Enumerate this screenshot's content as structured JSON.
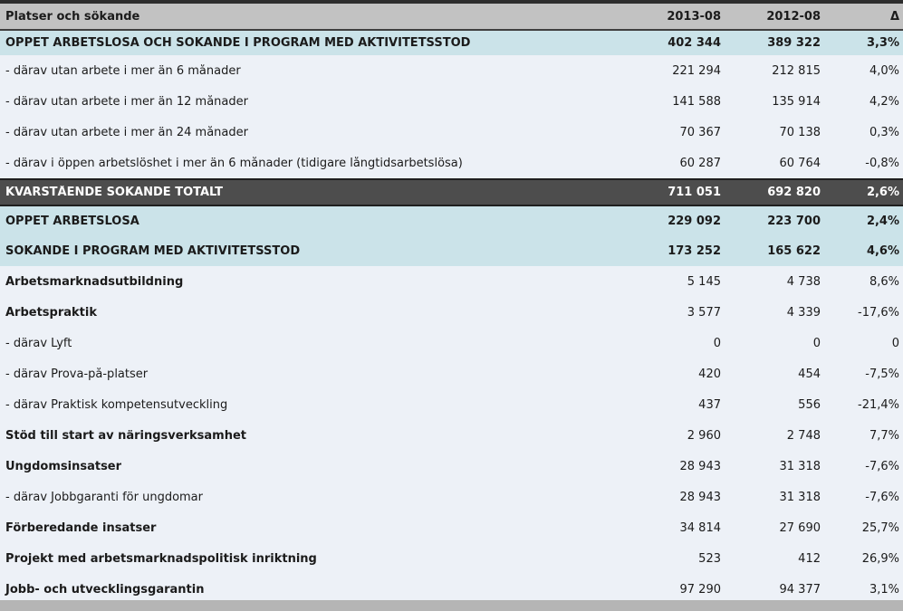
{
  "chart_data": {
    "type": "table",
    "title": "Platser och sökande",
    "columns": [
      "Platser och sökande",
      "2013-08",
      "2012-08",
      "Δ"
    ],
    "rows": [
      {
        "label": "ÖPPET ARBETSLÖSA OCH SÖKANDE I PROGRAM MED AKTIVITETSSTÖD",
        "v2013": "402 344",
        "v2012": "389 322",
        "delta": "3,3%",
        "style": "highlight"
      },
      {
        "label": "- därav utan arbete i mer än 6 månader",
        "v2013": "221 294",
        "v2012": "212 815",
        "delta": "4,0%",
        "style": "sub"
      },
      {
        "label": "- därav utan arbete i mer än 12 månader",
        "v2013": "141 588",
        "v2012": "135 914",
        "delta": "4,2%",
        "style": "sub"
      },
      {
        "label": "- därav utan arbete i mer än 24 månader",
        "v2013": "70 367",
        "v2012": "70 138",
        "delta": "0,3%",
        "style": "sub"
      },
      {
        "label": "- därav i öppen arbetslöshet i mer än 6 månader (tidigare långtidsarbetslösa)",
        "v2013": "60 287",
        "v2012": "60 764",
        "delta": "-0,8%",
        "style": "sub"
      },
      {
        "label": "KVARSTÅENDE SÖKANDE TOTALT",
        "v2013": "711 051",
        "v2012": "692 820",
        "delta": "2,6%",
        "style": "total"
      },
      {
        "label": "ÖPPET ARBETSLÖSA",
        "v2013": "229 092",
        "v2012": "223 700",
        "delta": "2,4%",
        "style": "highlight"
      },
      {
        "label": "SÖKANDE I PROGRAM MED AKTIVITETSSTÖD",
        "v2013": "173 252",
        "v2012": "165 622",
        "delta": "4,6%",
        "style": "highlight"
      },
      {
        "label": "Arbetsmarknadsutbildning",
        "v2013": "5 145",
        "v2012": "4 738",
        "delta": "8,6%",
        "style": "category"
      },
      {
        "label": "Arbetspraktik",
        "v2013": "3 577",
        "v2012": "4 339",
        "delta": "-17,6%",
        "style": "category"
      },
      {
        "label": "- därav Lyft",
        "v2013": "0",
        "v2012": "0",
        "delta": "0",
        "style": "sub"
      },
      {
        "label": "- därav Prova-på-platser",
        "v2013": "420",
        "v2012": "454",
        "delta": "-7,5%",
        "style": "sub"
      },
      {
        "label": "- därav Praktisk kompetensutveckling",
        "v2013": "437",
        "v2012": "556",
        "delta": "-21,4%",
        "style": "sub"
      },
      {
        "label": "Stöd till start av näringsverksamhet",
        "v2013": "2 960",
        "v2012": "2 748",
        "delta": "7,7%",
        "style": "category"
      },
      {
        "label": "Ungdomsinsatser",
        "v2013": "28 943",
        "v2012": "31 318",
        "delta": "-7,6%",
        "style": "category"
      },
      {
        "label": "- därav Jobbgaranti för ungdomar",
        "v2013": "28 943",
        "v2012": "31 318",
        "delta": "-7,6%",
        "style": "sub"
      },
      {
        "label": "Förberedande insatser",
        "v2013": "34 814",
        "v2012": "27 690",
        "delta": "25,7%",
        "style": "category"
      },
      {
        "label": "Projekt med arbetsmarknadspolitisk inriktning",
        "v2013": "523",
        "v2012": "412",
        "delta": "26,9%",
        "style": "category"
      },
      {
        "label": "Jobb- och utvecklingsgarantin",
        "v2013": "97 290",
        "v2012": "94 377",
        "delta": "3,1%",
        "style": "category"
      }
    ]
  },
  "colors": {
    "top_strip": "#2d2d2d",
    "header_bg": "#c2c2c2",
    "header_border": "#3f3f3f",
    "highlight_bg": "#cbe3e9",
    "row_bg": "#edf1f7",
    "total_bg": "#4d4d4d",
    "total_border": "#1f1f1f",
    "footer_bg": "#b5b5b5",
    "text": "#1b1b1b",
    "text_inverse": "#ffffff"
  }
}
